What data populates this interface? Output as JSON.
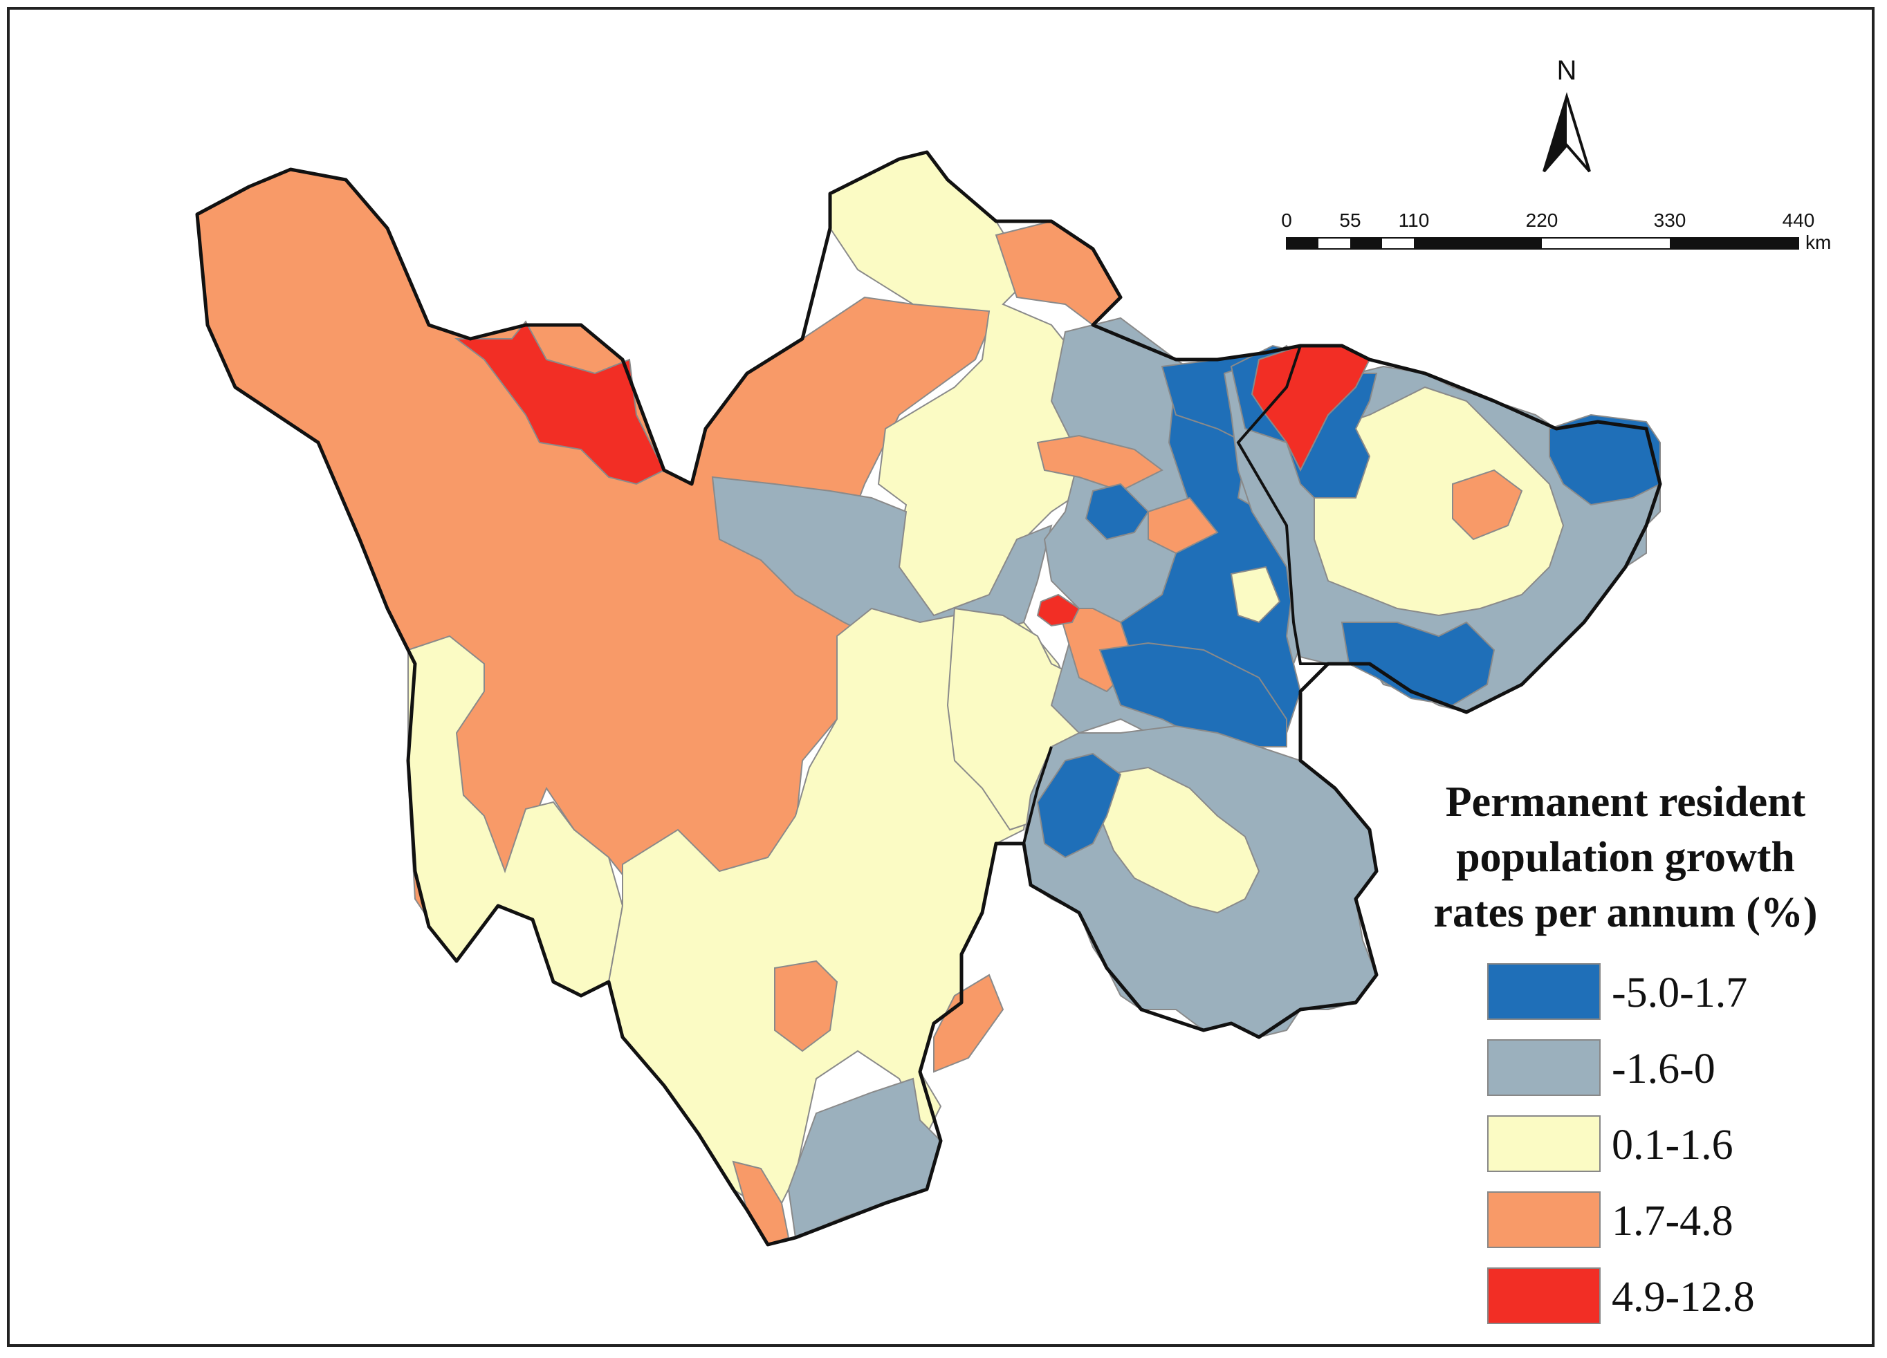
{
  "map": {
    "north_label": "N",
    "scale_bar": {
      "ticks": [
        "0",
        "55",
        "110",
        "220",
        "330",
        "440"
      ],
      "unit": "km"
    },
    "colors": {
      "outline": "#111111",
      "inner_border": "#8a8a8a"
    },
    "regions_legend_class_by_area": [
      "orange",
      "red",
      "yellow",
      "grey",
      "blue",
      "yellow",
      "orange"
    ]
  },
  "legend": {
    "title_line1": "Permanent resident",
    "title_line2": "population growth",
    "title_line3": "rates per annum (%)",
    "items": [
      {
        "label": "-5.0-1.7",
        "color": "#1f6fb8"
      },
      {
        "label": "-1.6-0",
        "color": "#9bb0bd"
      },
      {
        "label": "0.1-1.6",
        "color": "#fbfbc4"
      },
      {
        "label": "1.7-4.8",
        "color": "#f89a68"
      },
      {
        "label": "4.9-12.8",
        "color": "#f22e25"
      }
    ]
  }
}
